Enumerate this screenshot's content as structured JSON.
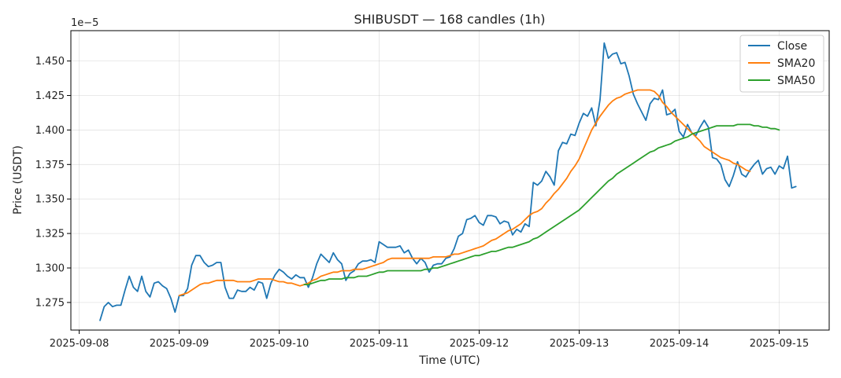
{
  "chart_data": {
    "type": "line",
    "title": "SHIBUSDT — 168 candles (1h)",
    "xlabel": "Time (UTC)",
    "ylabel": "Price (USDT)",
    "y_multiplier": "1e−5",
    "xlim": [
      "2025-09-07T22:00",
      "2025-09-15T12:00"
    ],
    "ylim": [
      1.255,
      1.472
    ],
    "x_ticks": [
      {
        "x": "2025-09-08T00:00",
        "label": "2025-09-08"
      },
      {
        "x": "2025-09-09T00:00",
        "label": "2025-09-09"
      },
      {
        "x": "2025-09-10T00:00",
        "label": "2025-09-10"
      },
      {
        "x": "2025-09-11T00:00",
        "label": "2025-09-11"
      },
      {
        "x": "2025-09-12T00:00",
        "label": "2025-09-12"
      },
      {
        "x": "2025-09-13T00:00",
        "label": "2025-09-13"
      },
      {
        "x": "2025-09-14T00:00",
        "label": "2025-09-14"
      },
      {
        "x": "2025-09-15T00:00",
        "label": "2025-09-15"
      }
    ],
    "y_ticks": [
      {
        "y": 1.275,
        "label": "1.275"
      },
      {
        "y": 1.3,
        "label": "1.300"
      },
      {
        "y": 1.325,
        "label": "1.325"
      },
      {
        "y": 1.35,
        "label": "1.350"
      },
      {
        "y": 1.375,
        "label": "1.375"
      },
      {
        "y": 1.4,
        "label": "1.400"
      },
      {
        "y": 1.425,
        "label": "1.425"
      },
      {
        "y": 1.45,
        "label": "1.450"
      }
    ],
    "grid": true,
    "legend_position": "top-right",
    "x_start": "2025-09-08T05:00",
    "x_step_hours": 1,
    "series": [
      {
        "name": "Close",
        "color": "#1f77b4",
        "start_index": 0,
        "values": [
          1.262,
          1.272,
          1.275,
          1.272,
          1.273,
          1.273,
          1.284,
          1.294,
          1.286,
          1.283,
          1.294,
          1.283,
          1.279,
          1.289,
          1.29,
          1.287,
          1.285,
          1.278,
          1.268,
          1.28,
          1.28,
          1.285,
          1.302,
          1.309,
          1.309,
          1.304,
          1.301,
          1.302,
          1.304,
          1.304,
          1.286,
          1.278,
          1.278,
          1.284,
          1.283,
          1.283,
          1.286,
          1.284,
          1.29,
          1.289,
          1.278,
          1.289,
          1.295,
          1.299,
          1.297,
          1.294,
          1.292,
          1.295,
          1.293,
          1.293,
          1.286,
          1.293,
          1.303,
          1.31,
          1.307,
          1.304,
          1.311,
          1.306,
          1.303,
          1.291,
          1.296,
          1.298,
          1.303,
          1.305,
          1.305,
          1.306,
          1.304,
          1.319,
          1.317,
          1.315,
          1.315,
          1.315,
          1.316,
          1.311,
          1.313,
          1.307,
          1.303,
          1.307,
          1.304,
          1.297,
          1.302,
          1.303,
          1.303,
          1.307,
          1.308,
          1.314,
          1.323,
          1.325,
          1.335,
          1.336,
          1.338,
          1.333,
          1.331,
          1.338,
          1.338,
          1.337,
          1.332,
          1.334,
          1.333,
          1.324,
          1.328,
          1.326,
          1.332,
          1.33,
          1.362,
          1.36,
          1.363,
          1.37,
          1.366,
          1.36,
          1.385,
          1.391,
          1.39,
          1.397,
          1.396,
          1.405,
          1.412,
          1.41,
          1.416,
          1.403,
          1.422,
          1.463,
          1.452,
          1.455,
          1.456,
          1.448,
          1.449,
          1.439,
          1.426,
          1.419,
          1.413,
          1.407,
          1.419,
          1.423,
          1.422,
          1.429,
          1.411,
          1.412,
          1.415,
          1.399,
          1.395,
          1.404,
          1.398,
          1.396,
          1.402,
          1.407,
          1.402,
          1.38,
          1.379,
          1.375,
          1.364,
          1.359,
          1.367,
          1.377,
          1.368,
          1.366,
          1.371,
          1.375,
          1.378,
          1.368,
          1.372,
          1.373,
          1.368,
          1.374,
          1.372,
          1.381,
          1.358,
          1.359
        ]
      },
      {
        "name": "SMA20",
        "color": "#ff7f0e",
        "start_index": 19,
        "values": [
          1.28,
          1.281,
          1.282,
          1.284,
          1.286,
          1.288,
          1.289,
          1.289,
          1.29,
          1.291,
          1.291,
          1.291,
          1.291,
          1.291,
          1.29,
          1.29,
          1.29,
          1.29,
          1.291,
          1.292,
          1.292,
          1.292,
          1.292,
          1.291,
          1.29,
          1.29,
          1.289,
          1.289,
          1.288,
          1.287,
          1.288,
          1.289,
          1.291,
          1.292,
          1.294,
          1.295,
          1.296,
          1.297,
          1.297,
          1.298,
          1.298,
          1.298,
          1.299,
          1.299,
          1.299,
          1.3,
          1.301,
          1.302,
          1.303,
          1.304,
          1.306,
          1.307,
          1.307,
          1.307,
          1.307,
          1.307,
          1.307,
          1.307,
          1.307,
          1.307,
          1.307,
          1.308,
          1.308,
          1.308,
          1.308,
          1.309,
          1.31,
          1.31,
          1.311,
          1.312,
          1.313,
          1.314,
          1.315,
          1.316,
          1.318,
          1.32,
          1.321,
          1.323,
          1.325,
          1.327,
          1.328,
          1.33,
          1.332,
          1.335,
          1.338,
          1.34,
          1.341,
          1.343,
          1.347,
          1.35,
          1.354,
          1.357,
          1.361,
          1.365,
          1.37,
          1.374,
          1.379,
          1.386,
          1.393,
          1.4,
          1.405,
          1.41,
          1.414,
          1.418,
          1.421,
          1.423,
          1.424,
          1.426,
          1.427,
          1.428,
          1.429,
          1.429,
          1.429,
          1.429,
          1.428,
          1.425,
          1.42,
          1.417,
          1.413,
          1.41,
          1.407,
          1.404,
          1.401,
          1.398,
          1.395,
          1.392,
          1.388,
          1.386,
          1.384,
          1.382,
          1.38,
          1.379,
          1.378,
          1.376,
          1.375,
          1.373,
          1.371,
          1.37
        ]
      },
      {
        "name": "SMA50",
        "color": "#2ca02c",
        "start_index": 49,
        "values": [
          1.288,
          1.288,
          1.289,
          1.29,
          1.291,
          1.291,
          1.292,
          1.292,
          1.292,
          1.292,
          1.293,
          1.293,
          1.293,
          1.294,
          1.294,
          1.294,
          1.295,
          1.296,
          1.297,
          1.297,
          1.298,
          1.298,
          1.298,
          1.298,
          1.298,
          1.298,
          1.298,
          1.298,
          1.298,
          1.299,
          1.299,
          1.3,
          1.3,
          1.301,
          1.302,
          1.303,
          1.304,
          1.305,
          1.306,
          1.307,
          1.308,
          1.309,
          1.309,
          1.31,
          1.311,
          1.312,
          1.312,
          1.313,
          1.314,
          1.315,
          1.315,
          1.316,
          1.317,
          1.318,
          1.319,
          1.321,
          1.322,
          1.324,
          1.326,
          1.328,
          1.33,
          1.332,
          1.334,
          1.336,
          1.338,
          1.34,
          1.342,
          1.345,
          1.348,
          1.351,
          1.354,
          1.357,
          1.36,
          1.363,
          1.365,
          1.368,
          1.37,
          1.372,
          1.374,
          1.376,
          1.378,
          1.38,
          1.382,
          1.384,
          1.385,
          1.387,
          1.388,
          1.389,
          1.39,
          1.392,
          1.393,
          1.394,
          1.395,
          1.397,
          1.398,
          1.399,
          1.4,
          1.401,
          1.402,
          1.403,
          1.403,
          1.403,
          1.403,
          1.403,
          1.404,
          1.404,
          1.404,
          1.404,
          1.403,
          1.403,
          1.402,
          1.402,
          1.401,
          1.401,
          1.4
        ]
      }
    ]
  }
}
